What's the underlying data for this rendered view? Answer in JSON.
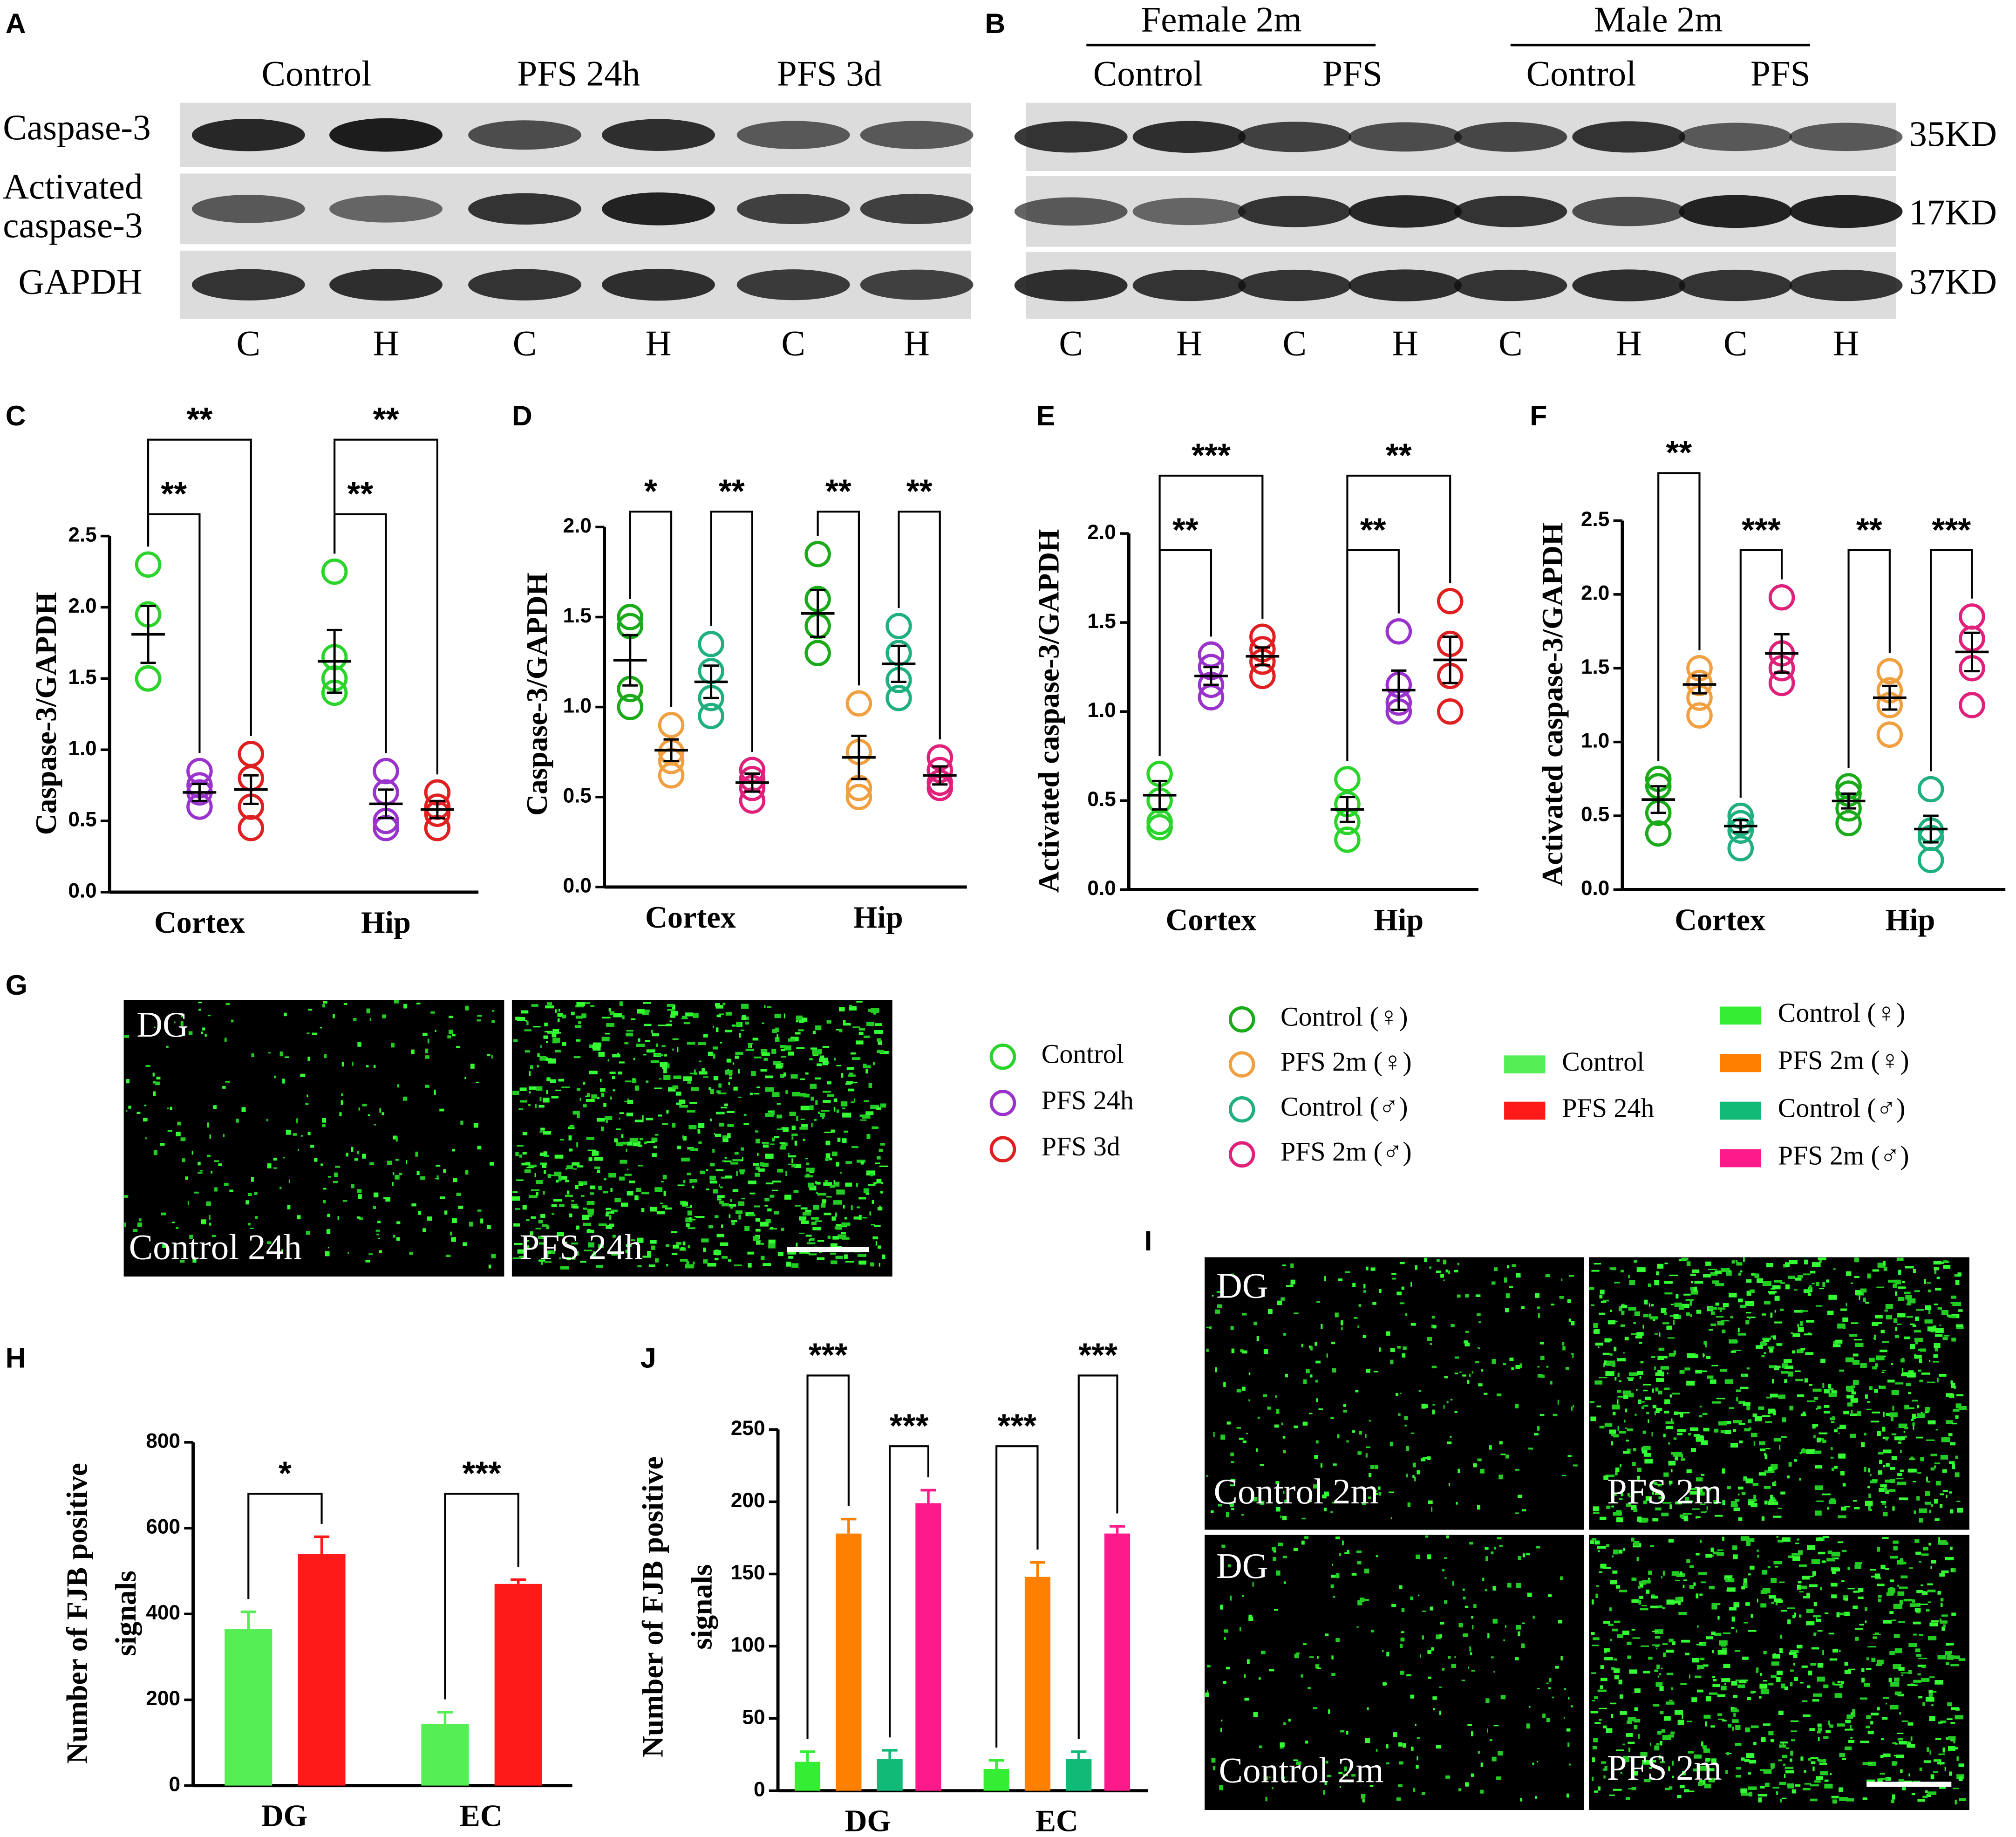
{
  "panel_labels": [
    "A",
    "B",
    "C",
    "D",
    "E",
    "F",
    "G",
    "H",
    "J",
    "I"
  ],
  "blot_a": {
    "groups": [
      "Control",
      "PFS 24h",
      "PFS 3d"
    ],
    "rows": [
      [
        "Caspase-3"
      ],
      [
        "Activated",
        "caspase-3"
      ],
      [
        "GAPDH"
      ]
    ],
    "lanes": [
      "C",
      "H",
      "C",
      "H",
      "C",
      "H"
    ]
  },
  "blot_b": {
    "sexes": [
      "Female 2m",
      "Male 2m"
    ],
    "groups": [
      "Control",
      "PFS",
      "Control",
      "PFS"
    ],
    "weights": [
      "35KD",
      "17KD",
      "37KD"
    ],
    "lanes": [
      "C",
      "H",
      "C",
      "H",
      "C",
      "H",
      "C",
      "H"
    ]
  },
  "micrograph_g": {
    "labels": [
      "DG",
      "Control 24h",
      "PFS 24h"
    ]
  },
  "micrograph_i": {
    "labels": [
      "DG",
      "Control 2m",
      "PFS 2m",
      "DG",
      "Control 2m",
      "PFS 2m"
    ]
  },
  "chart_data": [
    {
      "type": "dot",
      "ylabel": [
        "Caspase-3/GAPDH"
      ],
      "categories": [
        "Cortex",
        "Hip"
      ],
      "ylim": [
        0,
        2.5
      ],
      "yticks": [
        {
          "value": 0,
          "label": "0.0"
        },
        0.5,
        {
          "value": 1,
          "label": "1.0"
        },
        1.5,
        {
          "value": 2,
          "label": "2.0"
        },
        2.5
      ],
      "series": [
        {
          "name": "Control",
          "color": "#2bd42b",
          "points": [
            [
              2.3,
              1.95,
              1.5,
              1.5
            ],
            [
              2.25,
              1.65,
              1.5,
              1.4
            ]
          ],
          "mean": [
            1.81,
            1.62
          ],
          "sem": [
            0.2,
            0.22
          ]
        },
        {
          "name": "PFS 24h",
          "color": "#9933cc",
          "points": [
            [
              0.85,
              0.75,
              0.7,
              0.6
            ],
            [
              0.85,
              0.7,
              0.5,
              0.45
            ]
          ],
          "mean": [
            0.7,
            0.62
          ],
          "sem": [
            0.06,
            0.1
          ]
        },
        {
          "name": "PFS 3d",
          "color": "#e02020",
          "points": [
            [
              0.97,
              0.8,
              0.6,
              0.45
            ],
            [
              0.7,
              0.6,
              0.55,
              0.45
            ]
          ],
          "mean": [
            0.72,
            0.58
          ],
          "sem": [
            0.1,
            0.06
          ]
        }
      ],
      "annotations": [
        {
          "text": "**",
          "category": 0,
          "pair": [
            0,
            1
          ]
        },
        {
          "text": "**",
          "category": 0,
          "pair": [
            0,
            2
          ]
        },
        {
          "text": "**",
          "category": 1,
          "pair": [
            0,
            1
          ]
        },
        {
          "text": "**",
          "category": 1,
          "pair": [
            0,
            2
          ]
        }
      ]
    },
    {
      "type": "dot",
      "ylabel": [
        "Caspase-3/GAPDH"
      ],
      "categories": [
        "Cortex",
        "Hip"
      ],
      "ylim": [
        0,
        2
      ],
      "yticks": [
        {
          "value": 0,
          "label": "0.0"
        },
        0.5,
        {
          "value": 1,
          "label": "1.0"
        },
        1.5,
        {
          "value": 2,
          "label": "2.0"
        }
      ],
      "series": [
        {
          "name": "Control (♀)",
          "color": "#1aaa1a",
          "points": [
            [
              1.5,
              1.45,
              1.1,
              1.0
            ],
            [
              1.85,
              1.6,
              1.45,
              1.3
            ]
          ],
          "mean": [
            1.26,
            1.52
          ],
          "sem": [
            0.14,
            0.13
          ]
        },
        {
          "name": "PFS 2m (♀)",
          "color": "#f0a040",
          "points": [
            [
              0.9,
              0.75,
              0.7,
              0.62
            ],
            [
              1.02,
              0.75,
              0.55,
              0.5
            ]
          ],
          "mean": [
            0.76,
            0.72
          ],
          "sem": [
            0.06,
            0.12
          ]
        },
        {
          "name": "Control (♂)",
          "color": "#20b080",
          "points": [
            [
              1.35,
              1.2,
              1.05,
              0.95
            ],
            [
              1.45,
              1.3,
              1.15,
              1.05
            ]
          ],
          "mean": [
            1.14,
            1.24
          ],
          "sem": [
            0.09,
            0.1
          ]
        },
        {
          "name": "PFS 2m (♂)",
          "color": "#e0207a",
          "points": [
            [
              0.65,
              0.6,
              0.55,
              0.48
            ],
            [
              0.72,
              0.65,
              0.58,
              0.55
            ]
          ],
          "mean": [
            0.58,
            0.62
          ],
          "sem": [
            0.05,
            0.05
          ]
        }
      ],
      "annotations": [
        {
          "text": "*",
          "category": 0,
          "pair": [
            0,
            1
          ]
        },
        {
          "text": "**",
          "category": 0,
          "pair": [
            2,
            3
          ]
        },
        {
          "text": "**",
          "category": 1,
          "pair": [
            0,
            1
          ]
        },
        {
          "text": "**",
          "category": 1,
          "pair": [
            2,
            3
          ]
        }
      ]
    },
    {
      "type": "dot",
      "ylabel": [
        "Activated caspase-3/GAPDH"
      ],
      "categories": [
        "Cortex",
        "Hip"
      ],
      "ylim": [
        0,
        2
      ],
      "yticks": [
        {
          "value": 0,
          "label": "0.0"
        },
        0.5,
        {
          "value": 1,
          "label": "1.0"
        },
        1.5,
        {
          "value": 2,
          "label": "2.0"
        }
      ],
      "series": [
        {
          "color": "#2bd42b",
          "points": [
            [
              0.65,
              0.5,
              0.38,
              0.35
            ],
            [
              0.62,
              0.48,
              0.38,
              0.28
            ]
          ],
          "mean": [
            0.53,
            0.45
          ],
          "sem": [
            0.08,
            0.07
          ]
        },
        {
          "color": "#9933cc",
          "points": [
            [
              1.32,
              1.25,
              1.15,
              1.08
            ],
            [
              1.45,
              1.15,
              1.05,
              1.0
            ]
          ],
          "mean": [
            1.2,
            1.12
          ],
          "sem": [
            0.05,
            0.11
          ]
        },
        {
          "color": "#e02020",
          "points": [
            [
              1.42,
              1.35,
              1.28,
              1.2
            ],
            [
              1.62,
              1.38,
              1.2,
              1.0
            ]
          ],
          "mean": [
            1.31,
            1.29
          ],
          "sem": [
            0.05,
            0.13
          ]
        }
      ],
      "annotations": [
        {
          "text": "**",
          "category": 0,
          "pair": [
            0,
            1
          ]
        },
        {
          "text": "***",
          "category": 0,
          "pair": [
            0,
            2
          ]
        },
        {
          "text": "**",
          "category": 1,
          "pair": [
            0,
            1
          ]
        },
        {
          "text": "**",
          "category": 1,
          "pair": [
            0,
            2
          ]
        }
      ]
    },
    {
      "type": "dot",
      "ylabel": [
        "Activated caspase-3/GAPDH"
      ],
      "categories": [
        "Cortex",
        "Hip"
      ],
      "ylim": [
        0,
        2.5
      ],
      "yticks": [
        {
          "value": 0,
          "label": "0.0"
        },
        0.5,
        {
          "value": 1,
          "label": "1.0"
        },
        1.5,
        {
          "value": 2,
          "label": "2.0"
        },
        2.5
      ],
      "series": [
        {
          "color": "#1aaa1a",
          "points": [
            [
              0.75,
              0.7,
              0.52,
              0.38
            ],
            [
              0.7,
              0.65,
              0.55,
              0.45
            ]
          ],
          "mean": [
            0.61,
            0.6
          ],
          "sem": [
            0.09,
            0.05
          ]
        },
        {
          "color": "#f0a040",
          "points": [
            [
              1.5,
              1.4,
              1.3,
              1.18
            ],
            [
              1.48,
              1.35,
              1.25,
              1.05
            ]
          ],
          "mean": [
            1.39,
            1.3
          ],
          "sem": [
            0.06,
            0.08
          ]
        },
        {
          "color": "#20b080",
          "points": [
            [
              0.5,
              0.45,
              0.4,
              0.28
            ],
            [
              0.68,
              0.4,
              0.35,
              0.2
            ]
          ],
          "mean": [
            0.43,
            0.41
          ],
          "sem": [
            0.04,
            0.09
          ]
        },
        {
          "color": "#e0207a",
          "points": [
            [
              1.98,
              1.6,
              1.5,
              1.4
            ],
            [
              1.85,
              1.7,
              1.5,
              1.25
            ]
          ],
          "mean": [
            1.6,
            1.61
          ],
          "sem": [
            0.13,
            0.13
          ]
        }
      ],
      "annotations": [
        {
          "text": "**",
          "category": 0,
          "pair": [
            0,
            1
          ]
        },
        {
          "text": "***",
          "category": 0,
          "pair": [
            2,
            3
          ]
        },
        {
          "text": "**",
          "category": 1,
          "pair": [
            0,
            1
          ]
        },
        {
          "text": "***",
          "category": 1,
          "pair": [
            2,
            3
          ]
        }
      ]
    },
    {
      "type": "bar",
      "ylabel": [
        "Number of FJB positive",
        "signals"
      ],
      "categories": [
        "DG",
        "EC"
      ],
      "ylim": [
        0,
        800
      ],
      "yticks": [
        0,
        200,
        400,
        600,
        800
      ],
      "series": [
        {
          "name": "Control",
          "color": "#55ee55",
          "values": [
            365,
            143
          ],
          "errors": [
            40,
            28
          ]
        },
        {
          "name": "PFS 24h",
          "color": "#ff1a1a",
          "values": [
            540,
            470
          ],
          "errors": [
            40,
            10
          ]
        }
      ],
      "annotations": [
        {
          "text": "*",
          "category": 0,
          "pair": [
            0,
            1
          ]
        },
        {
          "text": "***",
          "category": 1,
          "pair": [
            0,
            1
          ]
        }
      ]
    },
    {
      "type": "bar",
      "ylabel": [
        "Number of FJB positive",
        "signals"
      ],
      "categories": [
        "DG",
        "EC"
      ],
      "ylim": [
        0,
        250
      ],
      "yticks": [
        0,
        50,
        100,
        150,
        200,
        250
      ],
      "series": [
        {
          "name": "Control (♀)",
          "color": "#33ee33",
          "values": [
            20,
            15
          ],
          "errors": [
            7,
            6
          ]
        },
        {
          "name": "PFS 2m (♀)",
          "color": "#ff8000",
          "values": [
            178,
            148
          ],
          "errors": [
            10,
            10
          ]
        },
        {
          "name": "Control (♂)",
          "color": "#11bb77",
          "values": [
            22,
            22
          ],
          "errors": [
            6,
            5
          ]
        },
        {
          "name": "PFS 2m (♂)",
          "color": "#ff1a8c",
          "values": [
            199,
            178
          ],
          "errors": [
            9,
            5
          ]
        }
      ],
      "annotations": [
        {
          "text": "***",
          "category": 0,
          "pair": [
            0,
            1
          ]
        },
        {
          "text": "***",
          "category": 0,
          "pair": [
            2,
            3
          ]
        },
        {
          "text": "***",
          "category": 1,
          "pair": [
            0,
            1
          ]
        },
        {
          "text": "***",
          "category": 1,
          "pair": [
            2,
            3
          ]
        }
      ]
    }
  ]
}
